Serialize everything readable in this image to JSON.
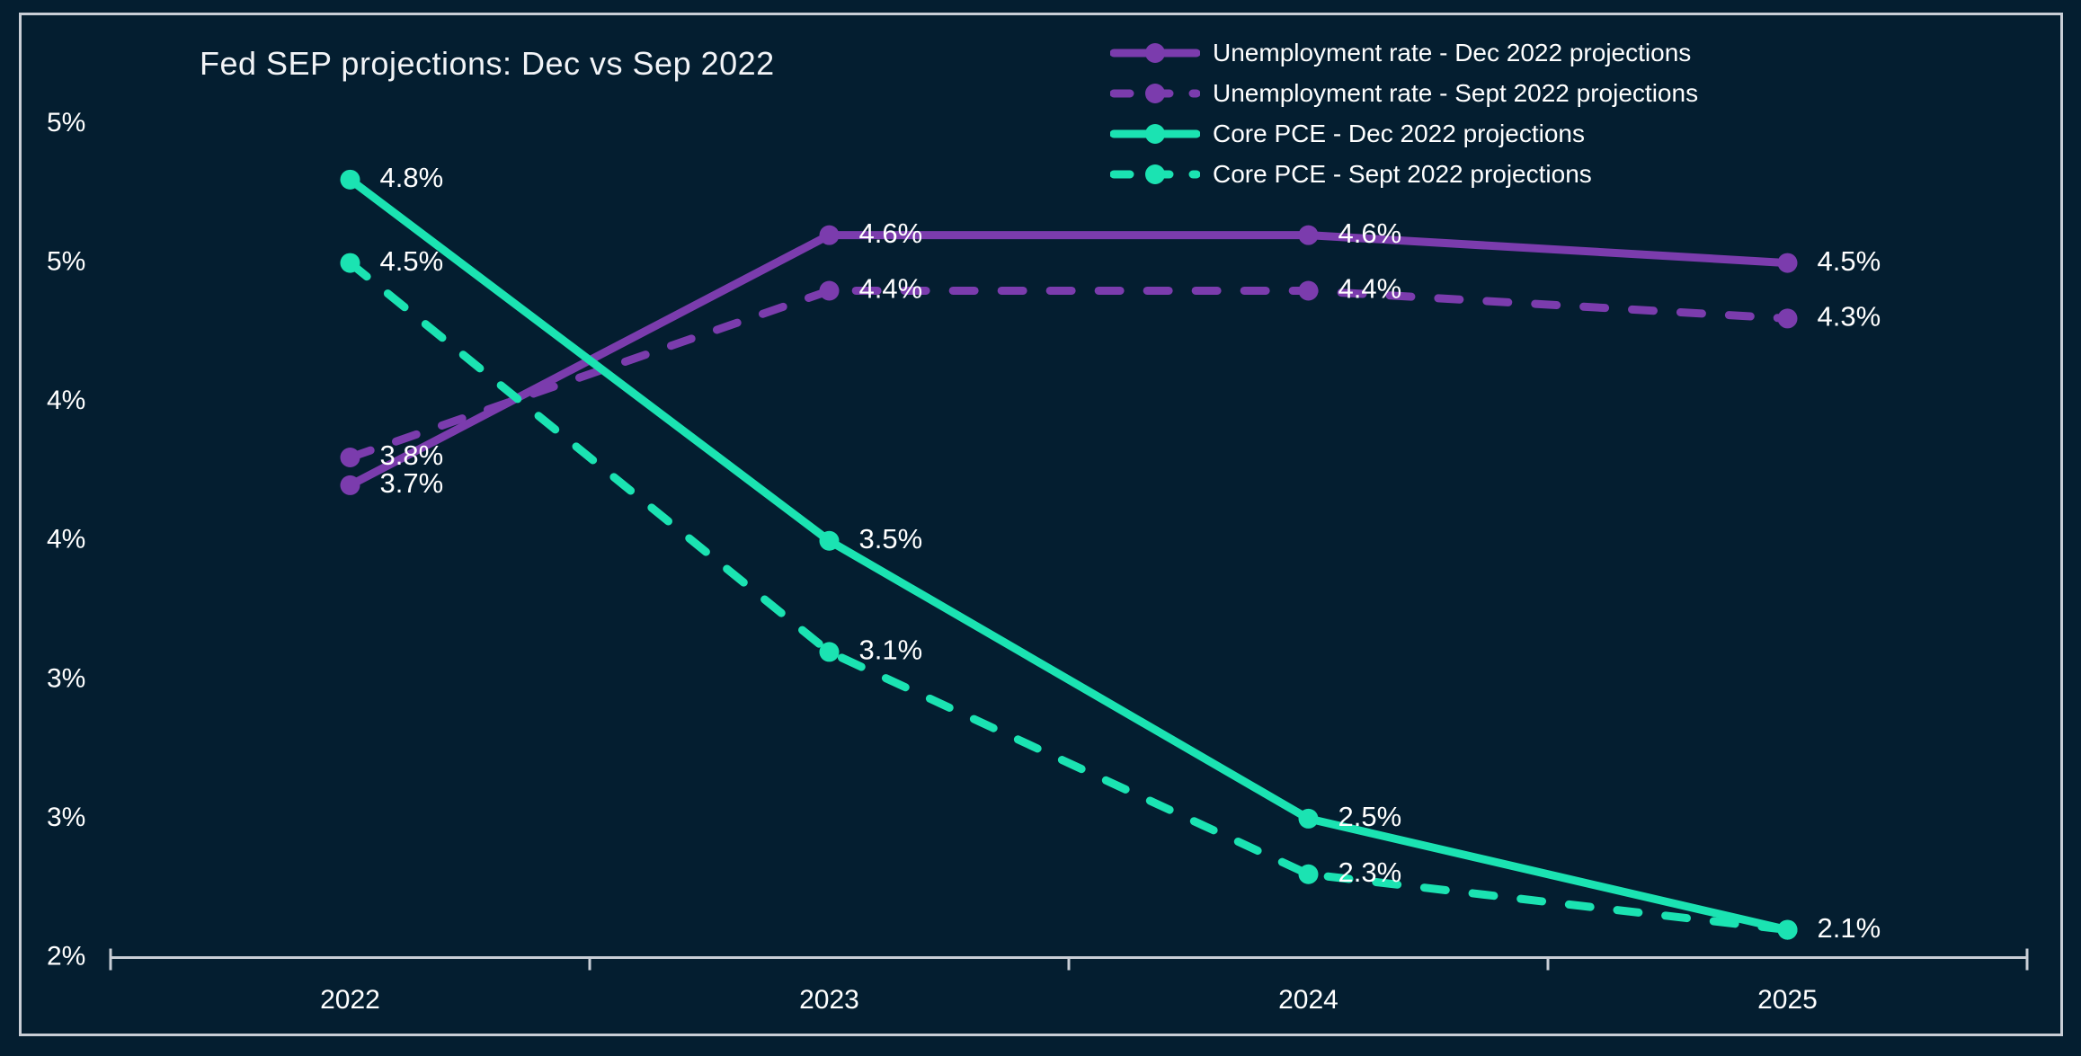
{
  "title": "Fed SEP projections: Dec vs Sep 2022",
  "colors": {
    "background": "#041E30",
    "frame_border": "#C9CED6",
    "axis": "#C9CED6",
    "text": "#FFFFFF",
    "unemployment_purple": "#7B3CAD",
    "core_pce_teal": "#1BE3B2"
  },
  "legend": {
    "items": [
      {
        "label": "Unemployment rate - Dec 2022 projections",
        "color": "#7B3CAD",
        "dashed": false
      },
      {
        "label": "Unemployment rate - Sept 2022 projections",
        "color": "#7B3CAD",
        "dashed": true
      },
      {
        "label": "Core PCE - Dec 2022 projections",
        "color": "#1BE3B2",
        "dashed": false
      },
      {
        "label": "Core PCE - Sept 2022 projections",
        "color": "#1BE3B2",
        "dashed": true
      }
    ]
  },
  "chart_data": {
    "type": "line",
    "title": "Fed SEP projections: Dec vs Sep 2022",
    "categories": [
      "2022",
      "2023",
      "2024",
      "2025"
    ],
    "series": [
      {
        "name": "Unemployment rate - Dec 2022 projections",
        "color": "#7B3CAD",
        "style": "solid",
        "values": [
          3.7,
          4.6,
          4.6,
          4.5
        ],
        "point_labels": [
          "3.7%",
          "4.6%",
          "4.6%",
          "4.5%"
        ]
      },
      {
        "name": "Unemployment rate - Sept 2022 projections",
        "color": "#7B3CAD",
        "style": "dashed",
        "values": [
          3.8,
          4.4,
          4.4,
          4.3
        ],
        "point_labels": [
          "3.8%",
          "4.4%",
          "4.4%",
          "4.3%"
        ]
      },
      {
        "name": "Core PCE - Dec 2022 projections",
        "color": "#1BE3B2",
        "style": "solid",
        "values": [
          4.8,
          3.5,
          2.5,
          2.1
        ],
        "point_labels": [
          "4.8%",
          "3.5%",
          "2.5%",
          "2.1%"
        ]
      },
      {
        "name": "Core PCE - Sept 2022 projections",
        "color": "#1BE3B2",
        "style": "dashed",
        "values": [
          4.5,
          3.1,
          2.3,
          2.1
        ],
        "point_labels": [
          "4.5%",
          "3.1%",
          "2.3%",
          ""
        ]
      }
    ],
    "xlabel": "",
    "ylabel": "",
    "x_axis": {
      "tick_labels": [
        "2022",
        "2023",
        "2024",
        "2025"
      ]
    },
    "y_axis": {
      "tick_values": [
        5.0,
        4.5,
        4.0,
        3.5,
        3.0,
        2.5,
        2.0
      ],
      "tick_labels": [
        "5%",
        "5%",
        "4%",
        "4%",
        "3%",
        "3%",
        "2%"
      ],
      "range": [
        2.0,
        5.0
      ]
    },
    "grid": false,
    "legend_position": "top-right"
  }
}
